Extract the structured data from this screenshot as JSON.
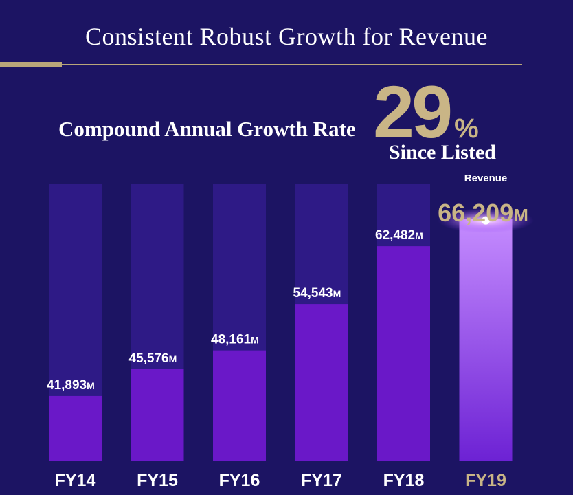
{
  "header": {
    "title": "Consistent Robust Growth for Revenue",
    "cagr_label": "Compound Annual Growth Rate",
    "cagr_value": "29",
    "cagr_unit": "%",
    "cagr_sub": "Since Listed"
  },
  "colors": {
    "background": "#1c1463",
    "accent_gold": "#c9b586",
    "bar_track": "#2e1a86",
    "bar_fill": "#6a18c8",
    "bar_highlight": "#a95cf0"
  },
  "chart_data": {
    "type": "bar",
    "title": "",
    "categories": [
      "FY14",
      "FY15",
      "FY16",
      "FY17",
      "FY18",
      "FY19"
    ],
    "series": [
      {
        "values": [
          41893,
          45576,
          48161,
          54543,
          62482,
          66209
        ],
        "labels": [
          "41,893",
          "45,576",
          "48,161",
          "54,543",
          "62,482",
          "66,209"
        ],
        "unit": "M"
      }
    ],
    "highlight": {
      "category": "FY19",
      "caption": "Revenue"
    },
    "xlabel": "",
    "ylabel": "",
    "ylim": [
      33000,
      71000
    ],
    "grid": false,
    "legend": "none"
  }
}
